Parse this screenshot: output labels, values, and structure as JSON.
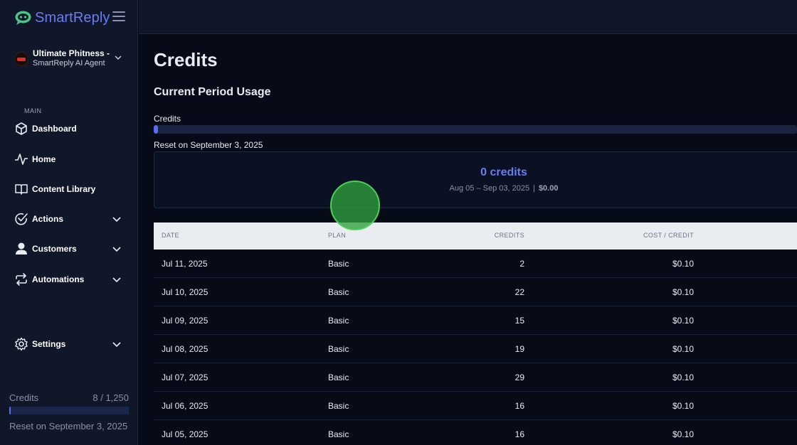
{
  "brand": {
    "name": "SmartReply"
  },
  "account": {
    "name": "Ultimate Phitness -",
    "subtitle": "SmartReply AI Agent"
  },
  "sidebar": {
    "section_label": "MAIN",
    "items": [
      {
        "label": "Dashboard",
        "icon": "cube-icon",
        "expandable": false
      },
      {
        "label": "Home",
        "icon": "activity-icon",
        "expandable": false
      },
      {
        "label": "Content Library",
        "icon": "book-icon",
        "expandable": false
      },
      {
        "label": "Actions",
        "icon": "check-circle-icon",
        "expandable": true
      },
      {
        "label": "Customers",
        "icon": "user-icon",
        "expandable": true
      },
      {
        "label": "Automations",
        "icon": "repeat-icon",
        "expandable": true
      },
      {
        "label": "Settings",
        "icon": "gear-icon",
        "expandable": true
      }
    ],
    "credits": {
      "label": "Credits",
      "count": "8 / 1,250",
      "used_fraction": 0.0064,
      "reset": "Reset on September 3, 2025"
    }
  },
  "main": {
    "title": "Credits",
    "subtitle": "Current Period Usage",
    "usage": {
      "label": "Credits",
      "used_fraction": 0.0064,
      "reset": "Reset on September 3, 2025"
    },
    "summary": {
      "credits": "0 credits",
      "range": "Aug 05 – Sep 03, 2025",
      "separator": "|",
      "cost": "$0.00"
    },
    "table": {
      "headers": {
        "date": "DATE",
        "plan": "PLAN",
        "credits": "CREDITS",
        "cost": "COST / CREDIT"
      },
      "rows": [
        {
          "date": "Jul 11, 2025",
          "plan": "Basic",
          "credits": "2",
          "cost": "$0.10"
        },
        {
          "date": "Jul 10, 2025",
          "plan": "Basic",
          "credits": "22",
          "cost": "$0.10"
        },
        {
          "date": "Jul 09, 2025",
          "plan": "Basic",
          "credits": "15",
          "cost": "$0.10"
        },
        {
          "date": "Jul 08, 2025",
          "plan": "Basic",
          "credits": "19",
          "cost": "$0.10"
        },
        {
          "date": "Jul 07, 2025",
          "plan": "Basic",
          "credits": "29",
          "cost": "$0.10"
        },
        {
          "date": "Jul 06, 2025",
          "plan": "Basic",
          "credits": "16",
          "cost": "$0.10"
        },
        {
          "date": "Jul 05, 2025",
          "plan": "Basic",
          "credits": "16",
          "cost": "$0.10"
        }
      ]
    }
  },
  "colors": {
    "accent": "#5b6cf0",
    "brand": "#6b7cf2",
    "background": "#060b17",
    "sidebar": "#0f1729"
  }
}
